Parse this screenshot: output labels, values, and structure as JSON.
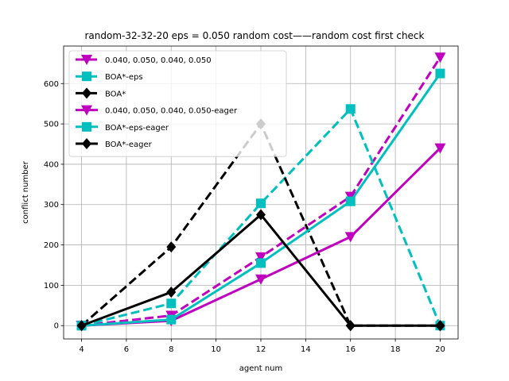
{
  "chart_data": {
    "type": "line",
    "title": "random-32-32-20    eps = 0.050    random cost——random cost    first check",
    "xlabel": "agent num",
    "ylabel": "conflict number",
    "x": [
      4,
      8,
      12,
      16,
      20
    ],
    "xlim": [
      3.2,
      20.8
    ],
    "ylim": [
      -33,
      693
    ],
    "xticks": [
      4,
      6,
      8,
      10,
      12,
      14,
      16,
      18,
      20
    ],
    "yticks": [
      0,
      100,
      200,
      300,
      400,
      500,
      600
    ],
    "grid": true,
    "legend_position": "top-left",
    "series": [
      {
        "name": "0.040, 0.050, 0.040, 0.050",
        "values": [
          0,
          25,
          170,
          320,
          665
        ],
        "color": "#bf00bf",
        "style": "dashed",
        "marker": "triangle-down"
      },
      {
        "name": "BOA*-eps",
        "values": [
          0,
          55,
          303,
          537,
          0
        ],
        "color": "#00bfbf",
        "style": "dashed",
        "marker": "square"
      },
      {
        "name": "BOA*",
        "values": [
          0,
          195,
          500,
          0,
          0
        ],
        "color": "#000000",
        "style": "dashed",
        "marker": "diamond"
      },
      {
        "name": "0.040, 0.050, 0.040, 0.050-eager",
        "values": [
          0,
          12,
          115,
          220,
          440
        ],
        "color": "#bf00bf",
        "style": "solid",
        "marker": "triangle-down"
      },
      {
        "name": "BOA*-eps-eager",
        "values": [
          0,
          15,
          155,
          308,
          625
        ],
        "color": "#00bfbf",
        "style": "solid",
        "marker": "square"
      },
      {
        "name": "BOA*-eager",
        "values": [
          0,
          83,
          275,
          0,
          0
        ],
        "color": "#000000",
        "style": "solid",
        "marker": "diamond"
      }
    ]
  }
}
